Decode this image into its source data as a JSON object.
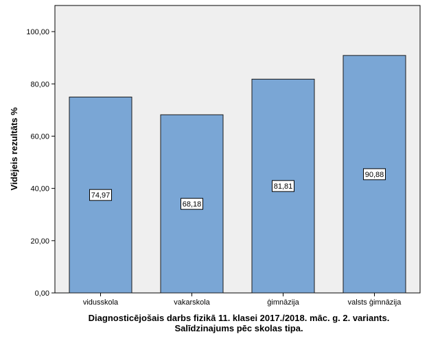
{
  "chart_data": {
    "type": "bar",
    "categories": [
      "vidusskola",
      "vakarskola",
      "ģimnāzija",
      "valsts ģimnāzija"
    ],
    "values": [
      74.97,
      68.18,
      81.81,
      90.88
    ],
    "data_labels": [
      "74,97",
      "68,18",
      "81,81",
      "90,88"
    ],
    "ylabel": "Vidējeis rezultāts %",
    "xlabel_lines": [
      "Diagnosticējošais darbs fizikā 11. klasei 2017./2018. māc. g. 2. variants.",
      "Salīdzinajums pēc skolas tipa."
    ],
    "ylim": [
      0,
      110
    ],
    "yticks": [
      0,
      20,
      40,
      60,
      80,
      100
    ],
    "ytick_labels": [
      "0,00",
      "20,00",
      "40,00",
      "60,00",
      "80,00",
      "100,00"
    ],
    "grid": false,
    "legend": "none",
    "colors": {
      "bar": "#7aa6d5",
      "bar_stroke": "#1a1a1a",
      "plot_bg": "#efefef"
    }
  }
}
